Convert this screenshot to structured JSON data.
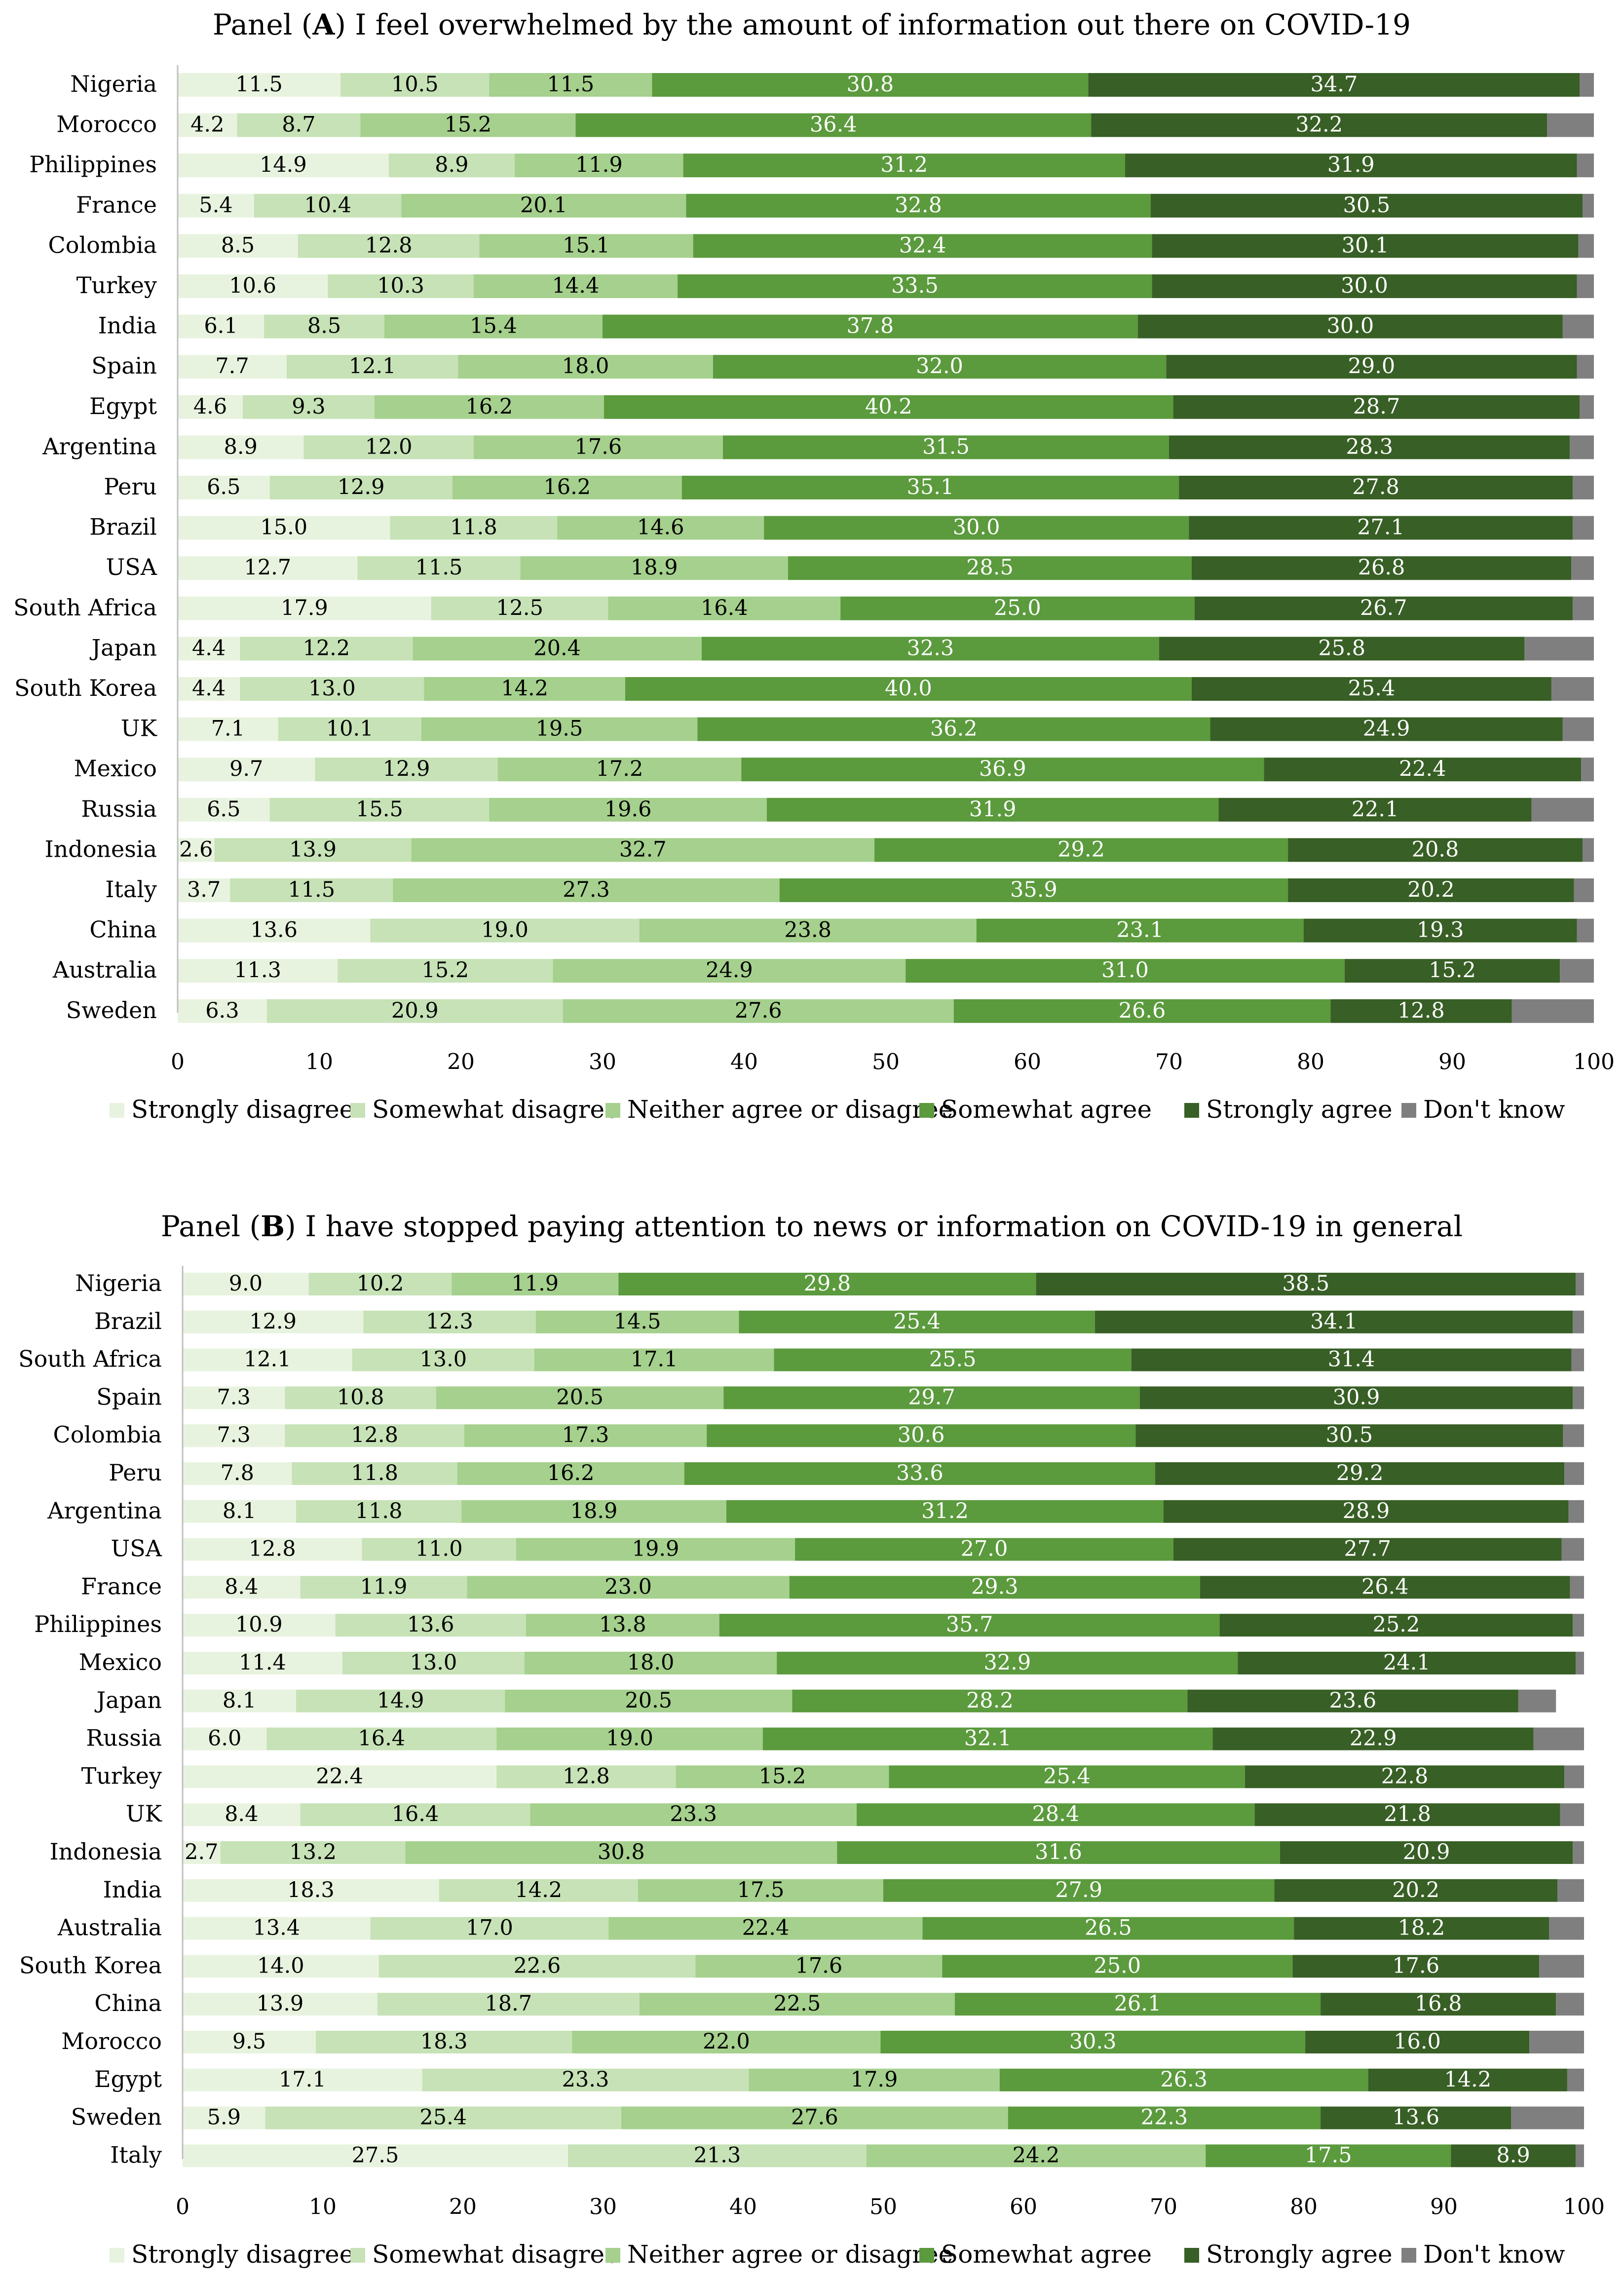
{
  "colors": {
    "Strongly disagree": "#e8f3df",
    "Somewhat disagree": "#c6e2b6",
    "Neither agree or disagree": "#a5d08d",
    "Somewhat agree": "#5b9a3d",
    "Strongly agree": "#385f25",
    "Don't know": "#7f7f7f"
  },
  "chart_data": [
    {
      "type": "bar",
      "orientation": "horizontal",
      "stacked": true,
      "title_prefix": "Panel (",
      "title_letter": "A",
      "title_suffix": ") I feel overwhelmed by the amount of information out there on COVID-19",
      "xlim": [
        0,
        100
      ],
      "xticks": [
        0,
        10,
        20,
        30,
        40,
        50,
        60,
        70,
        80,
        90,
        100
      ],
      "legend_position": "bottom",
      "categories": [
        "Nigeria",
        "Morocco",
        "Philippines",
        "France",
        "Colombia",
        "Turkey",
        "India",
        "Spain",
        "Egypt",
        "Argentina",
        "Peru",
        "Brazil",
        "USA",
        "South Africa",
        "Japan",
        "South Korea",
        "UK",
        "Mexico",
        "Russia",
        "Indonesia",
        "Italy",
        "China",
        "Australia",
        "Sweden"
      ],
      "series": [
        {
          "name": "Strongly disagree",
          "values": [
            11.5,
            4.2,
            14.9,
            5.4,
            8.5,
            10.6,
            6.1,
            7.7,
            4.6,
            8.9,
            6.5,
            15.0,
            12.7,
            17.9,
            4.4,
            4.4,
            7.1,
            9.7,
            6.5,
            2.6,
            3.7,
            13.6,
            11.3,
            6.3
          ]
        },
        {
          "name": "Somewhat disagree",
          "values": [
            10.5,
            8.7,
            8.9,
            10.4,
            12.8,
            10.3,
            8.5,
            12.1,
            9.3,
            12.0,
            12.9,
            11.8,
            11.5,
            12.5,
            12.2,
            13.0,
            10.1,
            12.9,
            15.5,
            13.9,
            11.5,
            19.0,
            15.2,
            20.9
          ]
        },
        {
          "name": "Neither agree or disagree",
          "values": [
            11.5,
            15.2,
            11.9,
            20.1,
            15.1,
            14.4,
            15.4,
            18.0,
            16.2,
            17.6,
            16.2,
            14.6,
            18.9,
            16.4,
            20.4,
            14.2,
            19.5,
            17.2,
            19.6,
            32.7,
            27.3,
            23.8,
            24.9,
            27.6
          ]
        },
        {
          "name": "Somewhat agree",
          "values": [
            30.8,
            36.4,
            31.2,
            32.8,
            32.4,
            33.5,
            37.8,
            32.0,
            40.2,
            31.5,
            35.1,
            30.0,
            28.5,
            25.0,
            32.3,
            40.0,
            36.2,
            36.9,
            31.9,
            29.2,
            35.9,
            23.1,
            31.0,
            26.6
          ]
        },
        {
          "name": "Strongly agree",
          "values": [
            34.7,
            32.2,
            31.9,
            30.5,
            30.1,
            30.0,
            30.0,
            29.0,
            28.7,
            28.3,
            27.8,
            27.1,
            26.8,
            26.7,
            25.8,
            25.4,
            24.9,
            22.4,
            22.1,
            20.8,
            20.2,
            19.3,
            15.2,
            12.8
          ]
        },
        {
          "name": "Don't know",
          "values": [
            1.0,
            3.3,
            1.2,
            0.8,
            1.1,
            1.2,
            2.2,
            1.2,
            1.0,
            1.7,
            1.5,
            1.5,
            1.6,
            1.5,
            4.9,
            3.0,
            2.2,
            0.9,
            4.4,
            0.8,
            1.4,
            1.2,
            2.4,
            5.8
          ]
        }
      ]
    },
    {
      "type": "bar",
      "orientation": "horizontal",
      "stacked": true,
      "title_prefix": "Panel (",
      "title_letter": "B",
      "title_suffix": ") I have stopped paying attention to news or information on COVID-19 in general",
      "xlim": [
        0,
        100
      ],
      "xticks": [
        0,
        10,
        20,
        30,
        40,
        50,
        60,
        70,
        80,
        90,
        100
      ],
      "legend_position": "bottom",
      "categories": [
        "Nigeria",
        "Brazil",
        "South Africa",
        "Spain",
        "Colombia",
        "Peru",
        "Argentina",
        "USA",
        "France",
        "Philippines",
        "Mexico",
        "Japan",
        "Russia",
        "Turkey",
        "UK",
        "Indonesia",
        "India",
        "Australia",
        "South Korea",
        "China",
        "Morocco",
        "Egypt",
        "Sweden",
        "Italy"
      ],
      "series": [
        {
          "name": "Strongly disagree",
          "values": [
            9.0,
            12.9,
            12.1,
            7.3,
            7.3,
            7.8,
            8.1,
            12.8,
            8.4,
            10.9,
            11.4,
            8.1,
            6.0,
            22.4,
            8.4,
            2.7,
            18.3,
            13.4,
            14.0,
            13.9,
            9.5,
            17.1,
            5.9,
            27.5
          ]
        },
        {
          "name": "Somewhat disagree",
          "values": [
            10.2,
            12.3,
            13.0,
            10.8,
            12.8,
            11.8,
            11.8,
            11.0,
            11.9,
            13.6,
            13.0,
            14.9,
            16.4,
            12.8,
            16.4,
            13.2,
            14.2,
            17.0,
            22.6,
            18.7,
            18.3,
            23.3,
            25.4,
            21.3
          ]
        },
        {
          "name": "Neither agree or disagree",
          "values": [
            11.9,
            14.5,
            17.1,
            20.5,
            17.3,
            16.2,
            18.9,
            19.9,
            23.0,
            13.8,
            18.0,
            20.5,
            19.0,
            15.2,
            23.3,
            30.8,
            17.5,
            22.4,
            17.6,
            22.5,
            22.0,
            17.9,
            27.6,
            24.2
          ]
        },
        {
          "name": "Somewhat agree",
          "values": [
            29.8,
            25.4,
            25.5,
            29.7,
            30.6,
            33.6,
            31.2,
            27.0,
            29.3,
            35.7,
            32.9,
            28.2,
            32.1,
            25.4,
            28.4,
            31.6,
            27.9,
            26.5,
            25.0,
            26.1,
            30.3,
            26.3,
            22.3,
            17.5
          ]
        },
        {
          "name": "Strongly agree",
          "values": [
            38.5,
            34.1,
            31.4,
            30.9,
            30.5,
            29.2,
            28.9,
            27.7,
            26.4,
            25.2,
            24.1,
            23.6,
            22.9,
            22.8,
            21.8,
            20.9,
            20.2,
            18.2,
            17.6,
            16.8,
            16.0,
            14.2,
            13.6,
            8.9
          ]
        },
        {
          "name": "Don't know",
          "values": [
            0.6,
            0.8,
            0.9,
            0.8,
            1.5,
            1.4,
            1.1,
            1.6,
            1.0,
            0.8,
            0.6,
            2.7,
            3.6,
            1.4,
            1.7,
            0.8,
            1.9,
            2.5,
            3.2,
            2.0,
            3.9,
            1.2,
            5.2,
            0.6
          ]
        }
      ]
    }
  ]
}
